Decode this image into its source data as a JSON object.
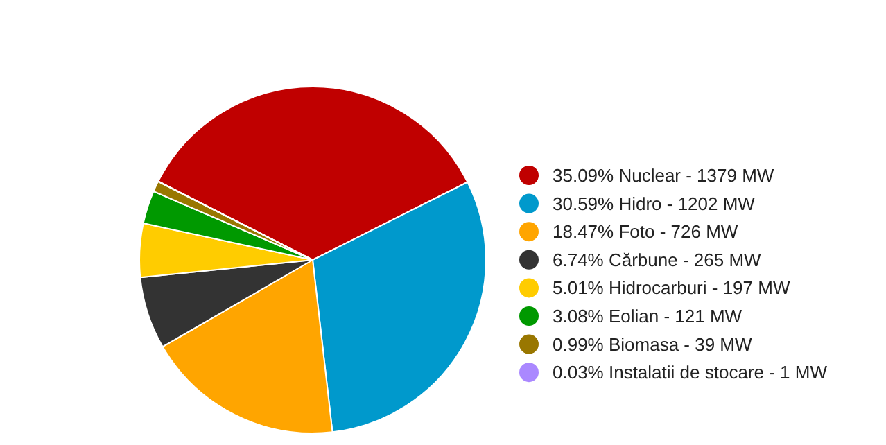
{
  "chart_data": {
    "type": "pie",
    "categories": [
      "35.09% Nuclear - 1379 MW",
      "30.59% Hidro - 1202 MW",
      "18.47% Foto - 726 MW",
      "6.74% Cărbune - 265 MW",
      "5.01% Hidrocarburi - 197 MW",
      "3.08% Eolian - 121 MW",
      "0.99% Biomasa - 39 MW",
      "0.03% Instalatii de stocare - 1 MW"
    ],
    "values": [
      35.09,
      30.59,
      18.47,
      6.74,
      5.01,
      3.08,
      0.99,
      0.03
    ],
    "colors": [
      "#c00000",
      "#0099cc",
      "#ffa500",
      "#333333",
      "#ffcc00",
      "#009900",
      "#997700",
      "#aa88ff"
    ],
    "legend": "right"
  }
}
